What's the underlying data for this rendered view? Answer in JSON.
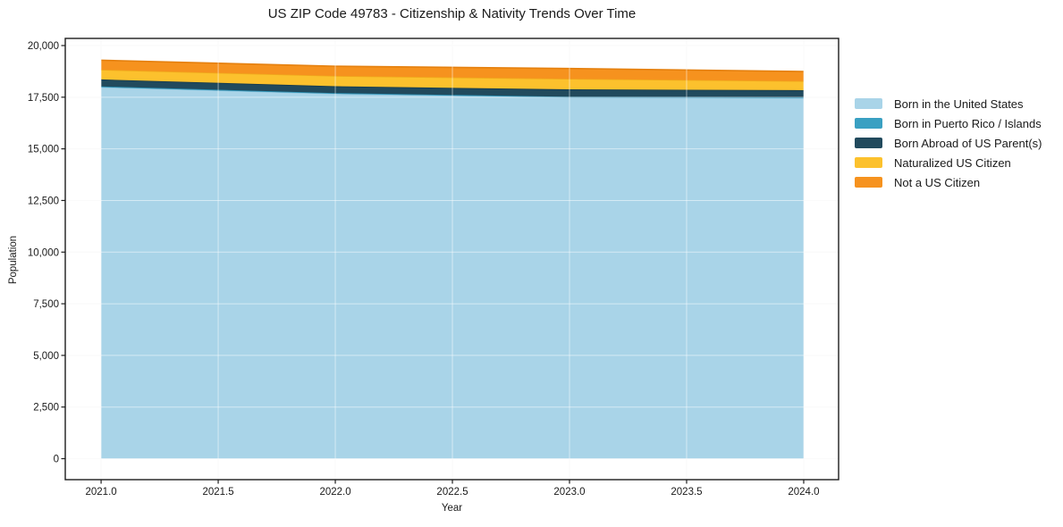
{
  "chart_data": {
    "type": "area",
    "stacked": true,
    "title": "US ZIP Code 49783 - Citizenship & Nativity Trends Over Time",
    "xlabel": "Year",
    "ylabel": "Population",
    "x": [
      2021,
      2022,
      2023,
      2024
    ],
    "series": [
      {
        "name": "Born in the United States",
        "color": "#a9d4e8",
        "edge_color": "#8cc1da",
        "values": [
          17990,
          17670,
          17490,
          17460
        ]
      },
      {
        "name": "Born in Puerto Rico / Islands",
        "color": "#3aa0c2",
        "edge_color": "#2d93b6",
        "values": [
          30,
          30,
          30,
          30
        ]
      },
      {
        "name": "Born Abroad of US Parent(s)",
        "color": "#214a5d",
        "edge_color": "#173b4c",
        "values": [
          340,
          330,
          360,
          350
        ]
      },
      {
        "name": "Naturalized US Citizen",
        "color": "#fcc12d",
        "edge_color": "#f0a91c",
        "values": [
          470,
          500,
          510,
          440
        ]
      },
      {
        "name": "Not a US Citizen",
        "color": "#f6921e",
        "edge_color": "#e5800e",
        "values": [
          460,
          470,
          500,
          465
        ]
      }
    ],
    "stack_totals": [
      19290,
      19000,
      18890,
      18745
    ],
    "xticks": {
      "values": [
        2021.0,
        2021.5,
        2022.0,
        2022.5,
        2023.0,
        2023.5,
        2024.0
      ],
      "labels": [
        "2021.0",
        "2021.5",
        "2022.0",
        "2022.5",
        "2023.0",
        "2023.5",
        "2024.0"
      ]
    },
    "yticks": {
      "values": [
        0,
        2500,
        5000,
        7500,
        10000,
        12500,
        15000,
        17500,
        20000
      ],
      "labels": [
        "0",
        "2,500",
        "5,000",
        "7,500",
        "10,000",
        "12,500",
        "15,000",
        "17,500",
        "20,000"
      ]
    },
    "xlim": [
      2020.847,
      2024.149
    ],
    "ylim": [
      -1016,
      20346
    ],
    "grid": true,
    "legend_position": "right",
    "colors": {
      "spine": "#1c1c1c",
      "text": "#1a1a1a",
      "background": "#ffffff"
    }
  }
}
